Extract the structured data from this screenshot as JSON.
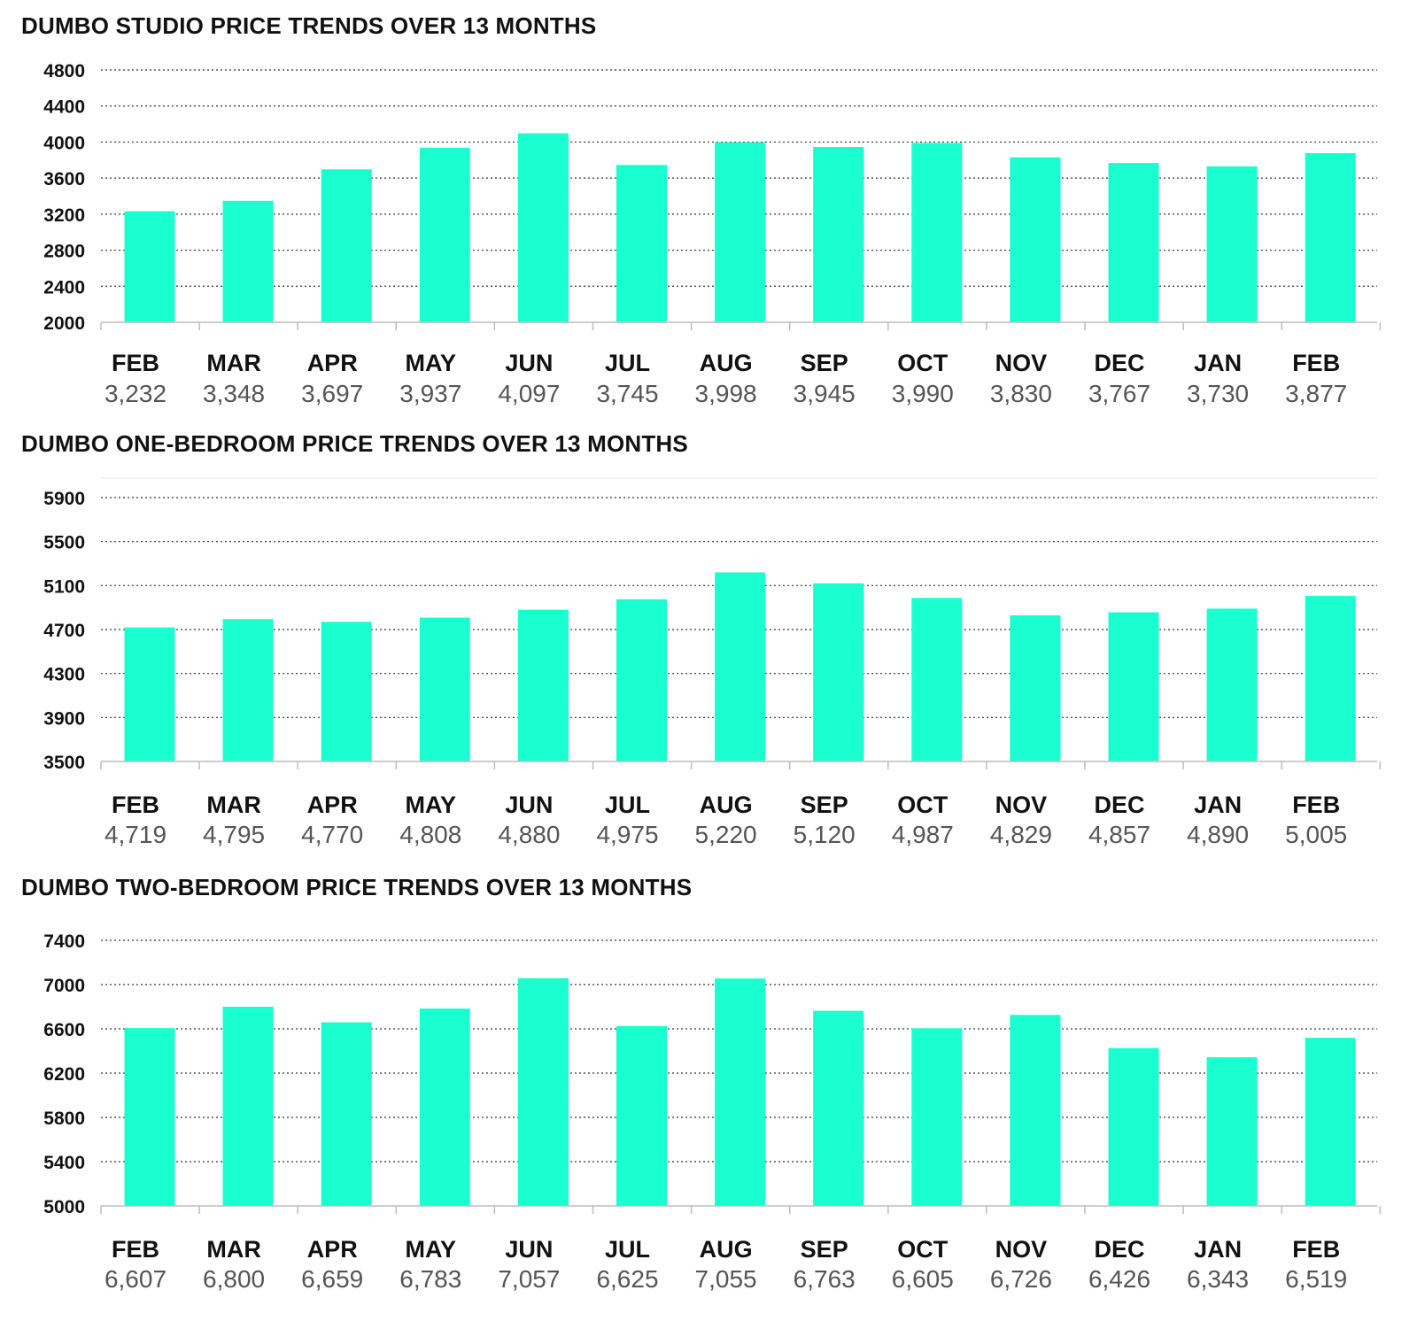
{
  "chart_data": [
    {
      "type": "bar",
      "title": "DUMBO STUDIO PRICE TRENDS OVER 13 MONTHS",
      "categories": [
        "FEB",
        "MAR",
        "APR",
        "MAY",
        "JUN",
        "JUL",
        "AUG",
        "SEP",
        "OCT",
        "NOV",
        "DEC",
        "JAN",
        "FEB"
      ],
      "values": [
        3232,
        3348,
        3697,
        3937,
        4097,
        3745,
        3998,
        3945,
        3990,
        3830,
        3767,
        3730,
        3877
      ],
      "value_labels": [
        "3,232",
        "3,348",
        "3,697",
        "3,937",
        "4,097",
        "3,745",
        "3,998",
        "3,945",
        "3,990",
        "3,830",
        "3,767",
        "3,730",
        "3,877"
      ],
      "yticks": [
        2000,
        2400,
        2800,
        3200,
        3600,
        4000,
        4400,
        4800
      ],
      "ytick_labels": [
        "2000",
        "2400",
        "2800",
        "3200",
        "3600",
        "4000",
        "4400",
        "4800"
      ],
      "ylim": [
        2000,
        4800
      ],
      "xlabel": "",
      "ylabel": "",
      "grid": true,
      "bar_color": "#19FFCF"
    },
    {
      "type": "bar",
      "title": "DUMBO ONE-BEDROOM PRICE TRENDS OVER 13 MONTHS",
      "categories": [
        "FEB",
        "MAR",
        "APR",
        "MAY",
        "JUN",
        "JUL",
        "AUG",
        "SEP",
        "OCT",
        "NOV",
        "DEC",
        "JAN",
        "FEB"
      ],
      "values": [
        4719,
        4795,
        4770,
        4808,
        4880,
        4975,
        5220,
        5120,
        4987,
        4829,
        4857,
        4890,
        5005
      ],
      "value_labels": [
        "4,719",
        "4,795",
        "4,770",
        "4,808",
        "4,880",
        "4,975",
        "5,220",
        "5,120",
        "4,987",
        "4,829",
        "4,857",
        "4,890",
        "5,005"
      ],
      "yticks": [
        3500,
        3900,
        4300,
        4700,
        5100,
        5500,
        5900
      ],
      "ytick_labels": [
        "3500",
        "3900",
        "4300",
        "4700",
        "5100",
        "5500",
        "5900"
      ],
      "ylim": [
        3500,
        6000
      ],
      "xlabel": "",
      "ylabel": "",
      "grid": true,
      "bar_color": "#19FFCF"
    },
    {
      "type": "bar",
      "title": "DUMBO TWO-BEDROOM PRICE TRENDS OVER 13 MONTHS",
      "categories": [
        "FEB",
        "MAR",
        "APR",
        "MAY",
        "JUN",
        "JUL",
        "AUG",
        "SEP",
        "OCT",
        "NOV",
        "DEC",
        "JAN",
        "FEB"
      ],
      "values": [
        6607,
        6800,
        6659,
        6783,
        7057,
        6625,
        7055,
        6763,
        6605,
        6726,
        6426,
        6343,
        6519
      ],
      "value_labels": [
        "6,607",
        "6,800",
        "6,659",
        "6,783",
        "7,057",
        "6,625",
        "7,055",
        "6,763",
        "6,605",
        "6,726",
        "6,426",
        "6,343",
        "6,519"
      ],
      "yticks": [
        5000,
        5400,
        5800,
        6200,
        6600,
        7000,
        7400
      ],
      "ytick_labels": [
        "5000",
        "5400",
        "5800",
        "6200",
        "6600",
        "7000",
        "7400"
      ],
      "ylim": [
        5000,
        7400
      ],
      "xlabel": "",
      "ylabel": "",
      "grid": true,
      "bar_color": "#19FFCF"
    }
  ]
}
